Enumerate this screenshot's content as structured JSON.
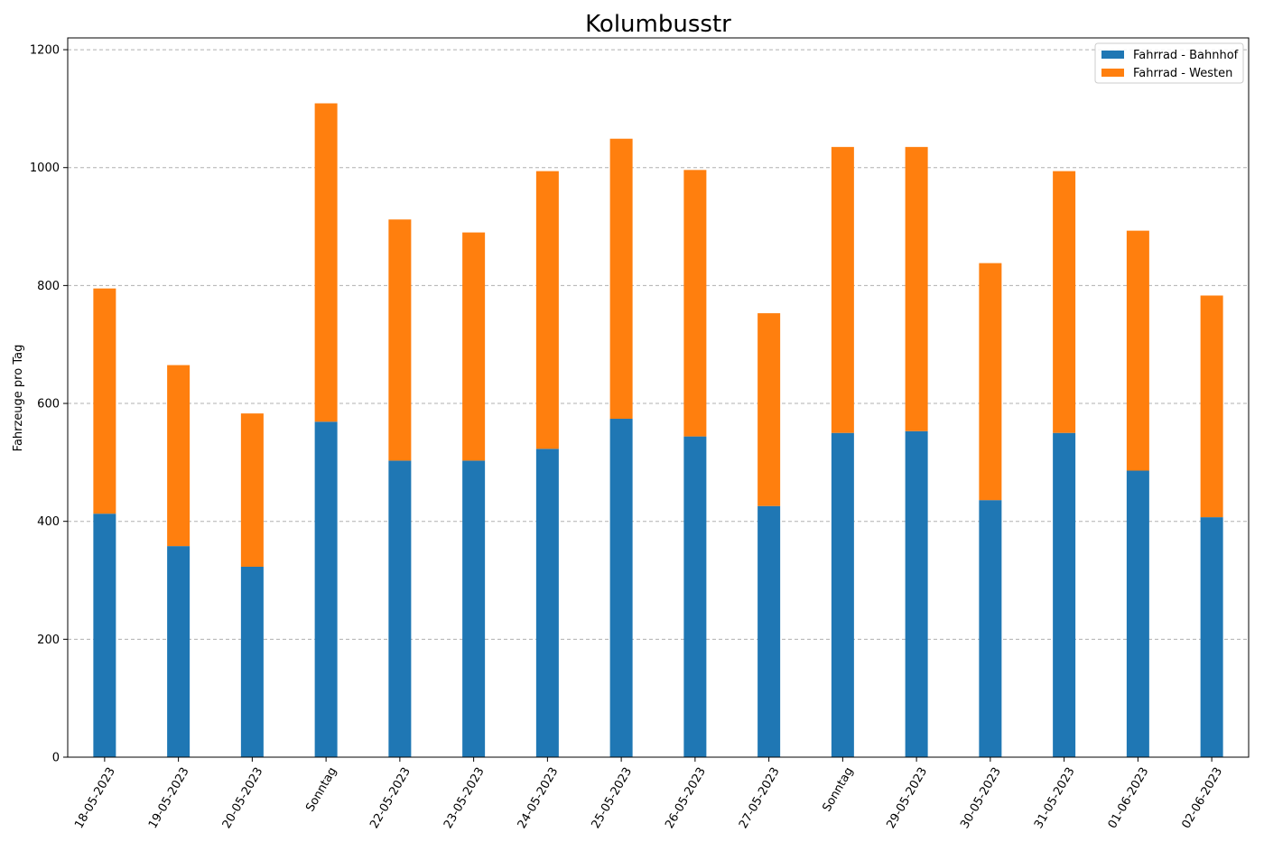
{
  "chart_data": {
    "type": "bar",
    "stacked": true,
    "title": "Kolumbusstr",
    "xlabel": "",
    "ylabel": "Fahrzeuge pro Tag",
    "ylim": [
      0,
      1220
    ],
    "yticks": [
      0,
      200,
      400,
      600,
      800,
      1000,
      1200
    ],
    "grid": "horizontal dashed",
    "legend_position": "top-right",
    "categories": [
      "18-05-2023",
      "19-05-2023",
      "20-05-2023",
      "Sonntag",
      "22-05-2023",
      "23-05-2023",
      "24-05-2023",
      "25-05-2023",
      "26-05-2023",
      "27-05-2023",
      "Sonntag",
      "29-05-2023",
      "30-05-2023",
      "31-05-2023",
      "01-06-2023",
      "02-06-2023"
    ],
    "series": [
      {
        "name": "Fahrrad - Bahnhof",
        "color": "#1f77b4",
        "values": [
          413,
          358,
          323,
          569,
          503,
          503,
          523,
          574,
          544,
          426,
          550,
          553,
          436,
          550,
          486,
          407
        ]
      },
      {
        "name": "Fahrrad - Westen",
        "color": "#ff7f0e",
        "values": [
          382,
          307,
          260,
          540,
          409,
          387,
          471,
          475,
          452,
          327,
          485,
          482,
          402,
          444,
          407,
          376
        ]
      }
    ]
  }
}
